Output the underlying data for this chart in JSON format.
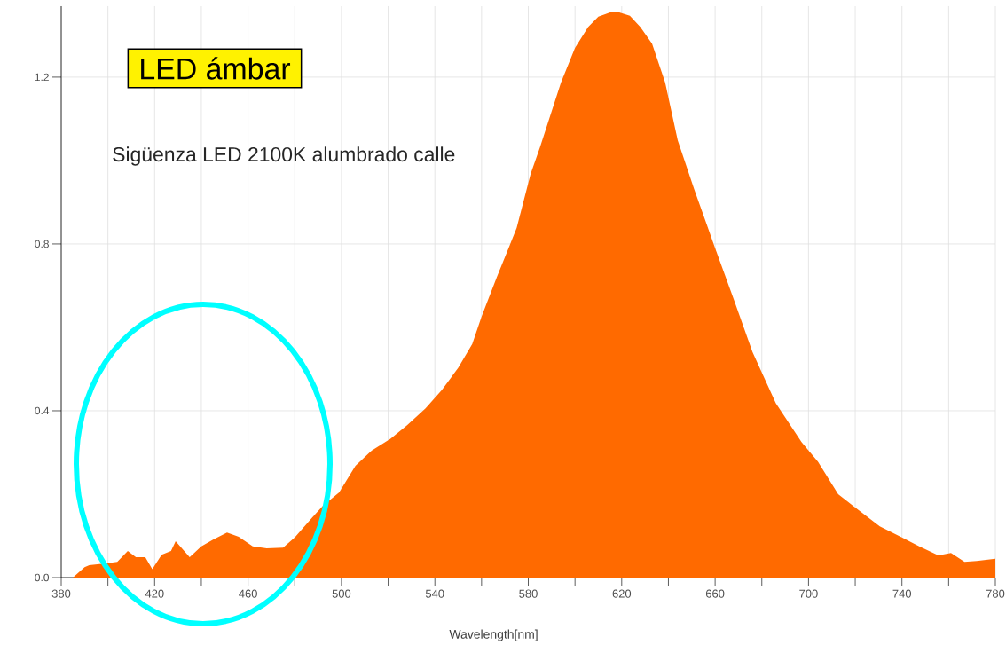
{
  "chart_data": {
    "type": "area",
    "title": "LED ámbar",
    "subtitle": "Sigüenza LED  2100K  alumbrado calle",
    "xlabel": "Wavelength[nm]",
    "x": [
      385,
      390,
      392,
      399,
      404,
      408.5,
      412,
      416,
      419,
      423,
      427,
      429,
      435,
      440,
      445,
      451,
      456,
      462,
      468,
      475,
      480,
      487.5,
      492,
      499,
      506,
      513,
      521,
      528,
      536,
      543,
      550,
      556,
      560,
      566.5,
      572,
      575,
      581,
      585,
      594,
      600,
      605.6,
      610,
      615,
      619,
      623.5,
      628,
      633,
      638.6,
      644,
      651,
      659.5,
      668,
      676,
      686,
      697,
      704,
      712.7,
      719.5,
      730.5,
      740,
      747,
      755.6,
      761,
      766.8,
      772,
      780
    ],
    "values": [
      0,
      0.025,
      0.03,
      0.034,
      0.038,
      0.064,
      0.049,
      0.049,
      0.02,
      0.055,
      0.064,
      0.087,
      0.049,
      0.075,
      0.091,
      0.108,
      0.098,
      0.075,
      0.07,
      0.072,
      0.096,
      0.144,
      0.172,
      0.204,
      0.268,
      0.305,
      0.333,
      0.365,
      0.406,
      0.45,
      0.503,
      0.56,
      0.626,
      0.72,
      0.796,
      0.838,
      0.968,
      1.032,
      1.187,
      1.27,
      1.32,
      1.345,
      1.355,
      1.355,
      1.347,
      1.32,
      1.28,
      1.187,
      1.048,
      0.932,
      0.798,
      0.667,
      0.541,
      0.418,
      0.325,
      0.278,
      0.2,
      0.17,
      0.123,
      0.096,
      0.076,
      0.053,
      0.059,
      0.038,
      0.04,
      0.045
    ],
    "color": "#ff6a00",
    "xlim": [
      380,
      780
    ],
    "ylim": [
      0,
      1.37
    ],
    "xticks": [
      380,
      {
        "value": 400,
        "label": null
      },
      420,
      {
        "value": 440,
        "label": null
      },
      460,
      {
        "value": 480,
        "label": null
      },
      500,
      {
        "value": 520,
        "label": null
      },
      540,
      {
        "value": 560,
        "label": null
      },
      580,
      {
        "value": 600,
        "label": null
      },
      620,
      {
        "value": 640,
        "label": null
      },
      660,
      {
        "value": 680,
        "label": null
      },
      700,
      {
        "value": 720,
        "label": null
      },
      740,
      {
        "value": 760,
        "label": null
      },
      780
    ],
    "yticks": [
      {
        "value": 0,
        "label": "0.0"
      },
      {
        "value": 0.4,
        "label": "0.4"
      },
      {
        "value": 0.8,
        "label": "0.8"
      },
      {
        "value": 1.2,
        "label": "1.2"
      }
    ],
    "grid": true
  }
}
